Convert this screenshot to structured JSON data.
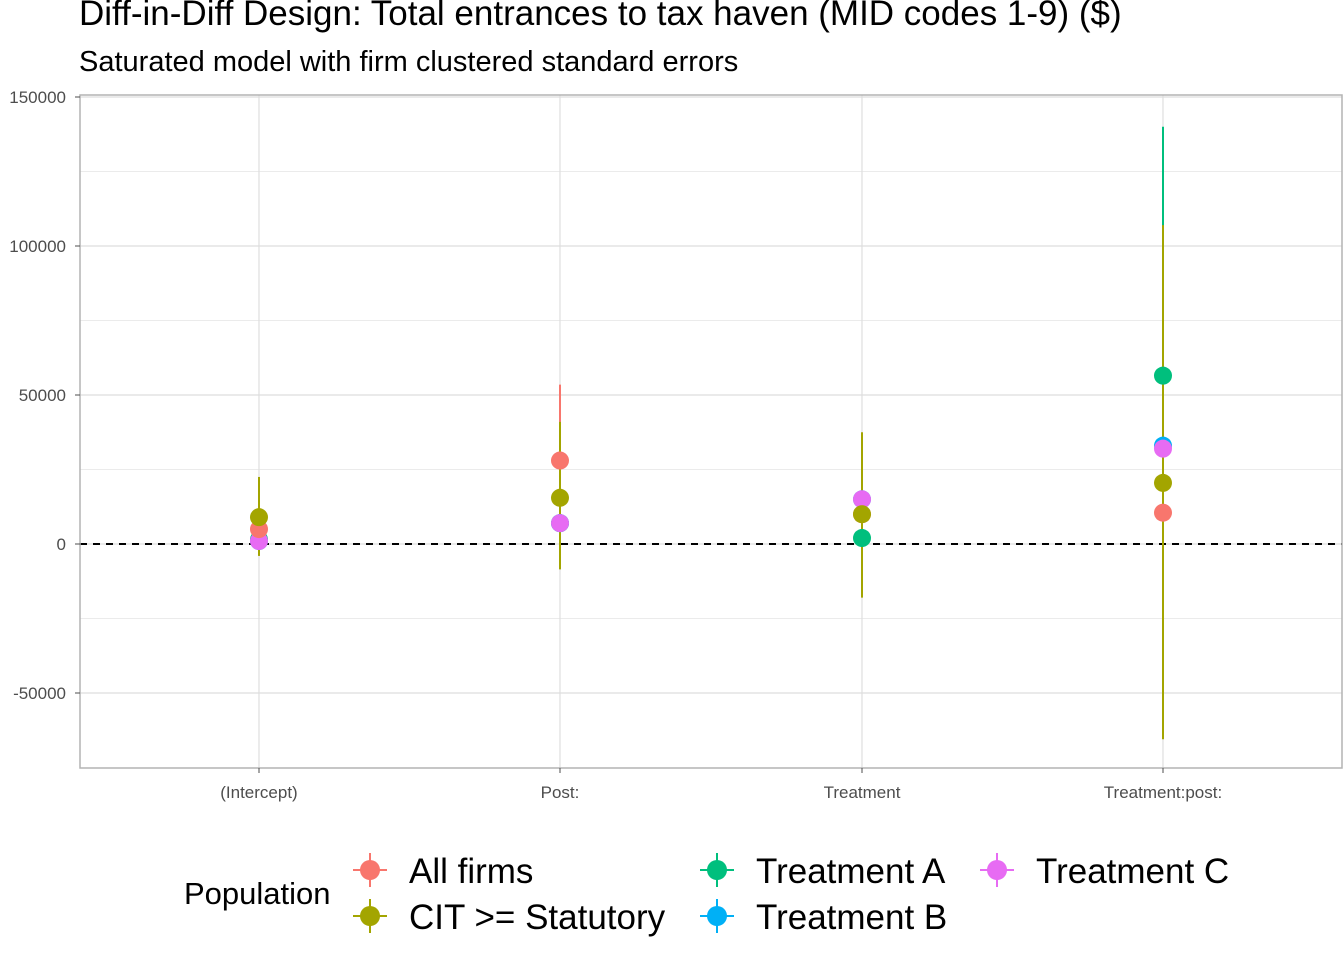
{
  "chart_data": {
    "type": "scatter",
    "title": "Diff-in-Diff Design: Total entrances to tax haven (MID codes 1-9)  ($)",
    "subtitle": "Saturated model with firm clustered standard errors",
    "categories": [
      "(Intercept)",
      "Post:",
      "Treatment",
      "Treatment:post:"
    ],
    "y_ticks": [
      "150000",
      "100000",
      "50000",
      "0",
      "-50000"
    ],
    "y_tick_values": [
      150000,
      100000,
      50000,
      0,
      -50000
    ],
    "ylim": [
      -75000,
      150000
    ],
    "reference_line": 0,
    "grid": true,
    "legend": {
      "title": "Population",
      "position": "bottom",
      "entries": [
        "All firms",
        "CIT >= Statutory",
        "Treatment A",
        "Treatment B",
        "Treatment C"
      ]
    },
    "series": [
      {
        "name": "All firms",
        "color": "#F8766D",
        "estimates": [
          5000,
          28000,
          10000,
          10500
        ],
        "lower": [
          -2000,
          2000,
          -17000,
          -64000
        ],
        "upper": [
          12000,
          53500,
          37000,
          85000
        ]
      },
      {
        "name": "CIT >= Statutory",
        "color": "#A3A500",
        "estimates": [
          9000,
          15500,
          10000,
          20500
        ],
        "lower": [
          -4000,
          -8500,
          -18000,
          -65500
        ],
        "upper": [
          22500,
          41000,
          37500,
          107000
        ]
      },
      {
        "name": "Treatment A",
        "color": "#00BF7D",
        "estimates": [
          1500,
          7000,
          2000,
          56500
        ],
        "lower": [
          -1500,
          1500,
          -3000,
          -27000
        ],
        "upper": [
          4500,
          12500,
          7000,
          140000
        ]
      },
      {
        "name": "Treatment B",
        "color": "#00B0F6",
        "estimates": [
          1000,
          7000,
          15000,
          33000
        ],
        "lower": [
          -1500,
          2000,
          10000,
          -20000
        ],
        "upper": [
          3500,
          12000,
          20000,
          86000
        ]
      },
      {
        "name": "Treatment C",
        "color": "#E76BF3",
        "estimates": [
          1000,
          7000,
          15000,
          32000
        ],
        "lower": [
          -1500,
          2000,
          10000,
          -20000
        ],
        "upper": [
          3500,
          12000,
          20000,
          84000
        ]
      }
    ]
  }
}
